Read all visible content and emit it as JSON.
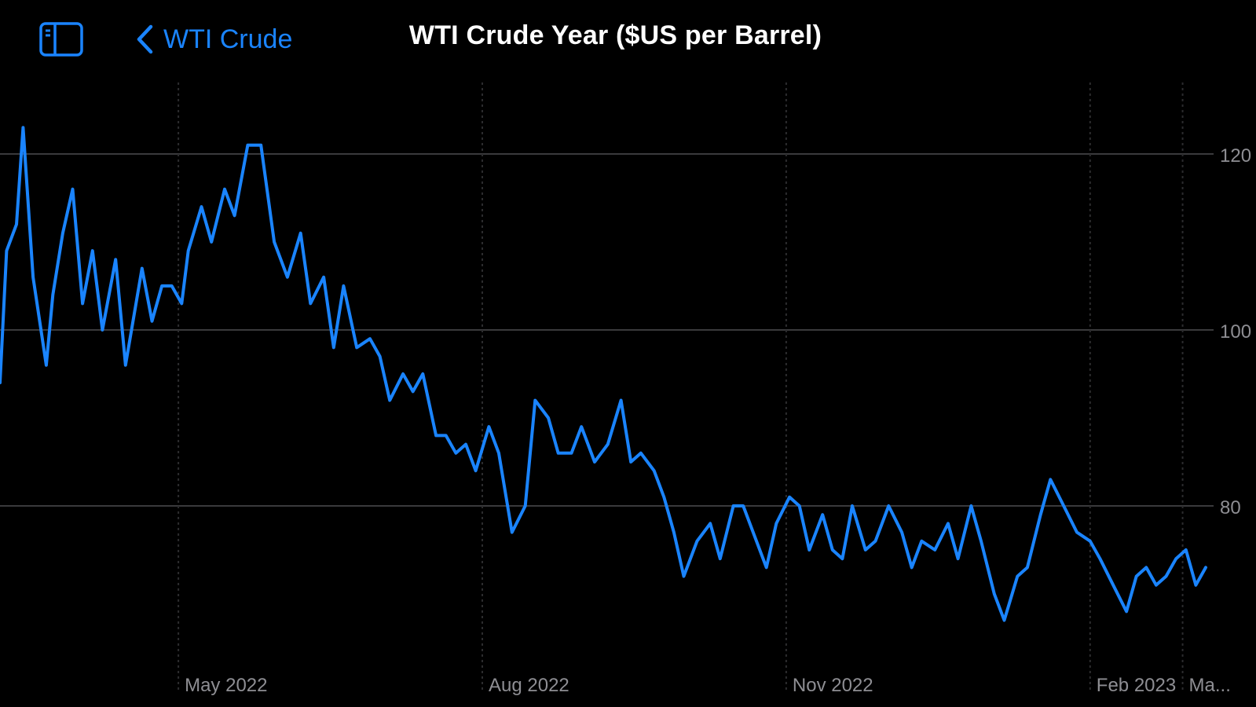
{
  "header": {
    "back_label": "WTI Crude",
    "title": "WTI Crude Year ($US per Barrel)",
    "sidebar_icon": "sidebar-icon",
    "back_icon": "chevron-left-icon",
    "accent_color": "#1a84ff"
  },
  "chart_data": {
    "type": "line",
    "title": "WTI Crude Year ($US per Barrel)",
    "xlabel": "",
    "ylabel": "",
    "line_color": "#1a84ff",
    "grid": true,
    "ylim": [
      50,
      130
    ],
    "xlim": [
      "2022-03-08",
      "2023-03-08"
    ],
    "x_ticks": [
      {
        "date": "2022-05-01",
        "label": "May 2022"
      },
      {
        "date": "2022-08-01",
        "label": "Aug 2022"
      },
      {
        "date": "2022-11-01",
        "label": "Nov 2022"
      },
      {
        "date": "2023-02-01",
        "label": "Feb 2023"
      },
      {
        "date": "2023-03-01",
        "label": "Ma..."
      }
    ],
    "y_ticks": [
      {
        "value": 120,
        "label": "120"
      },
      {
        "value": 100,
        "label": "100"
      },
      {
        "value": 80,
        "label": "80"
      }
    ],
    "series": [
      {
        "x": [
          "2022-03-08",
          "2022-03-10",
          "2022-03-13",
          "2022-03-15",
          "2022-03-18",
          "2022-03-22",
          "2022-03-24",
          "2022-03-27",
          "2022-03-30",
          "2022-04-02",
          "2022-04-05",
          "2022-04-08",
          "2022-04-12",
          "2022-04-15",
          "2022-04-20",
          "2022-04-23",
          "2022-04-26",
          "2022-04-29",
          "2022-05-02",
          "2022-05-04",
          "2022-05-08",
          "2022-05-11",
          "2022-05-15",
          "2022-05-18",
          "2022-05-22",
          "2022-05-26",
          "2022-05-30",
          "2022-06-03",
          "2022-06-07",
          "2022-06-10",
          "2022-06-14",
          "2022-06-17",
          "2022-06-20",
          "2022-06-24",
          "2022-06-28",
          "2022-07-01",
          "2022-07-04",
          "2022-07-08",
          "2022-07-11",
          "2022-07-14",
          "2022-07-18",
          "2022-07-21",
          "2022-07-24",
          "2022-07-27",
          "2022-07-30",
          "2022-08-03",
          "2022-08-06",
          "2022-08-10",
          "2022-08-14",
          "2022-08-17",
          "2022-08-21",
          "2022-08-24",
          "2022-08-28",
          "2022-08-31",
          "2022-09-04",
          "2022-09-08",
          "2022-09-12",
          "2022-09-15",
          "2022-09-18",
          "2022-09-22",
          "2022-09-25",
          "2022-09-28",
          "2022-10-01",
          "2022-10-05",
          "2022-10-09",
          "2022-10-12",
          "2022-10-16",
          "2022-10-19",
          "2022-10-22",
          "2022-10-26",
          "2022-10-29",
          "2022-11-02",
          "2022-11-05",
          "2022-11-08",
          "2022-11-12",
          "2022-11-15",
          "2022-11-18",
          "2022-11-21",
          "2022-11-25",
          "2022-11-28",
          "2022-12-02",
          "2022-12-06",
          "2022-12-09",
          "2022-12-12",
          "2022-12-16",
          "2022-12-20",
          "2022-12-23",
          "2022-12-27",
          "2022-12-30",
          "2023-01-03",
          "2023-01-06",
          "2023-01-10",
          "2023-01-13",
          "2023-01-17",
          "2023-01-20",
          "2023-01-24",
          "2023-01-28",
          "2023-02-01",
          "2023-02-04",
          "2023-02-08",
          "2023-02-12",
          "2023-02-15",
          "2023-02-18",
          "2023-02-21",
          "2023-02-24",
          "2023-02-27",
          "2023-03-02",
          "2023-03-05",
          "2023-03-08"
        ],
        "values": [
          94,
          109,
          112,
          123,
          106,
          96,
          104,
          111,
          116,
          103,
          109,
          100,
          108,
          96,
          107,
          101,
          105,
          105,
          103,
          109,
          114,
          110,
          116,
          113,
          121,
          121,
          110,
          106,
          111,
          103,
          106,
          98,
          105,
          98,
          99,
          97,
          92,
          95,
          93,
          95,
          88,
          88,
          86,
          87,
          84,
          89,
          86,
          77,
          80,
          92,
          90,
          86,
          86,
          89,
          85,
          87,
          92,
          85,
          86,
          84,
          81,
          77,
          72,
          76,
          78,
          74,
          80,
          80,
          77,
          73,
          78,
          81,
          80,
          75,
          79,
          75,
          74,
          80,
          75,
          76,
          80,
          77,
          73,
          76,
          75,
          78,
          74,
          80,
          76,
          70,
          67,
          72,
          73,
          79,
          83,
          80,
          77,
          76,
          74,
          71,
          68,
          72,
          73,
          71,
          72,
          74,
          75,
          71,
          73
        ]
      }
    ]
  }
}
